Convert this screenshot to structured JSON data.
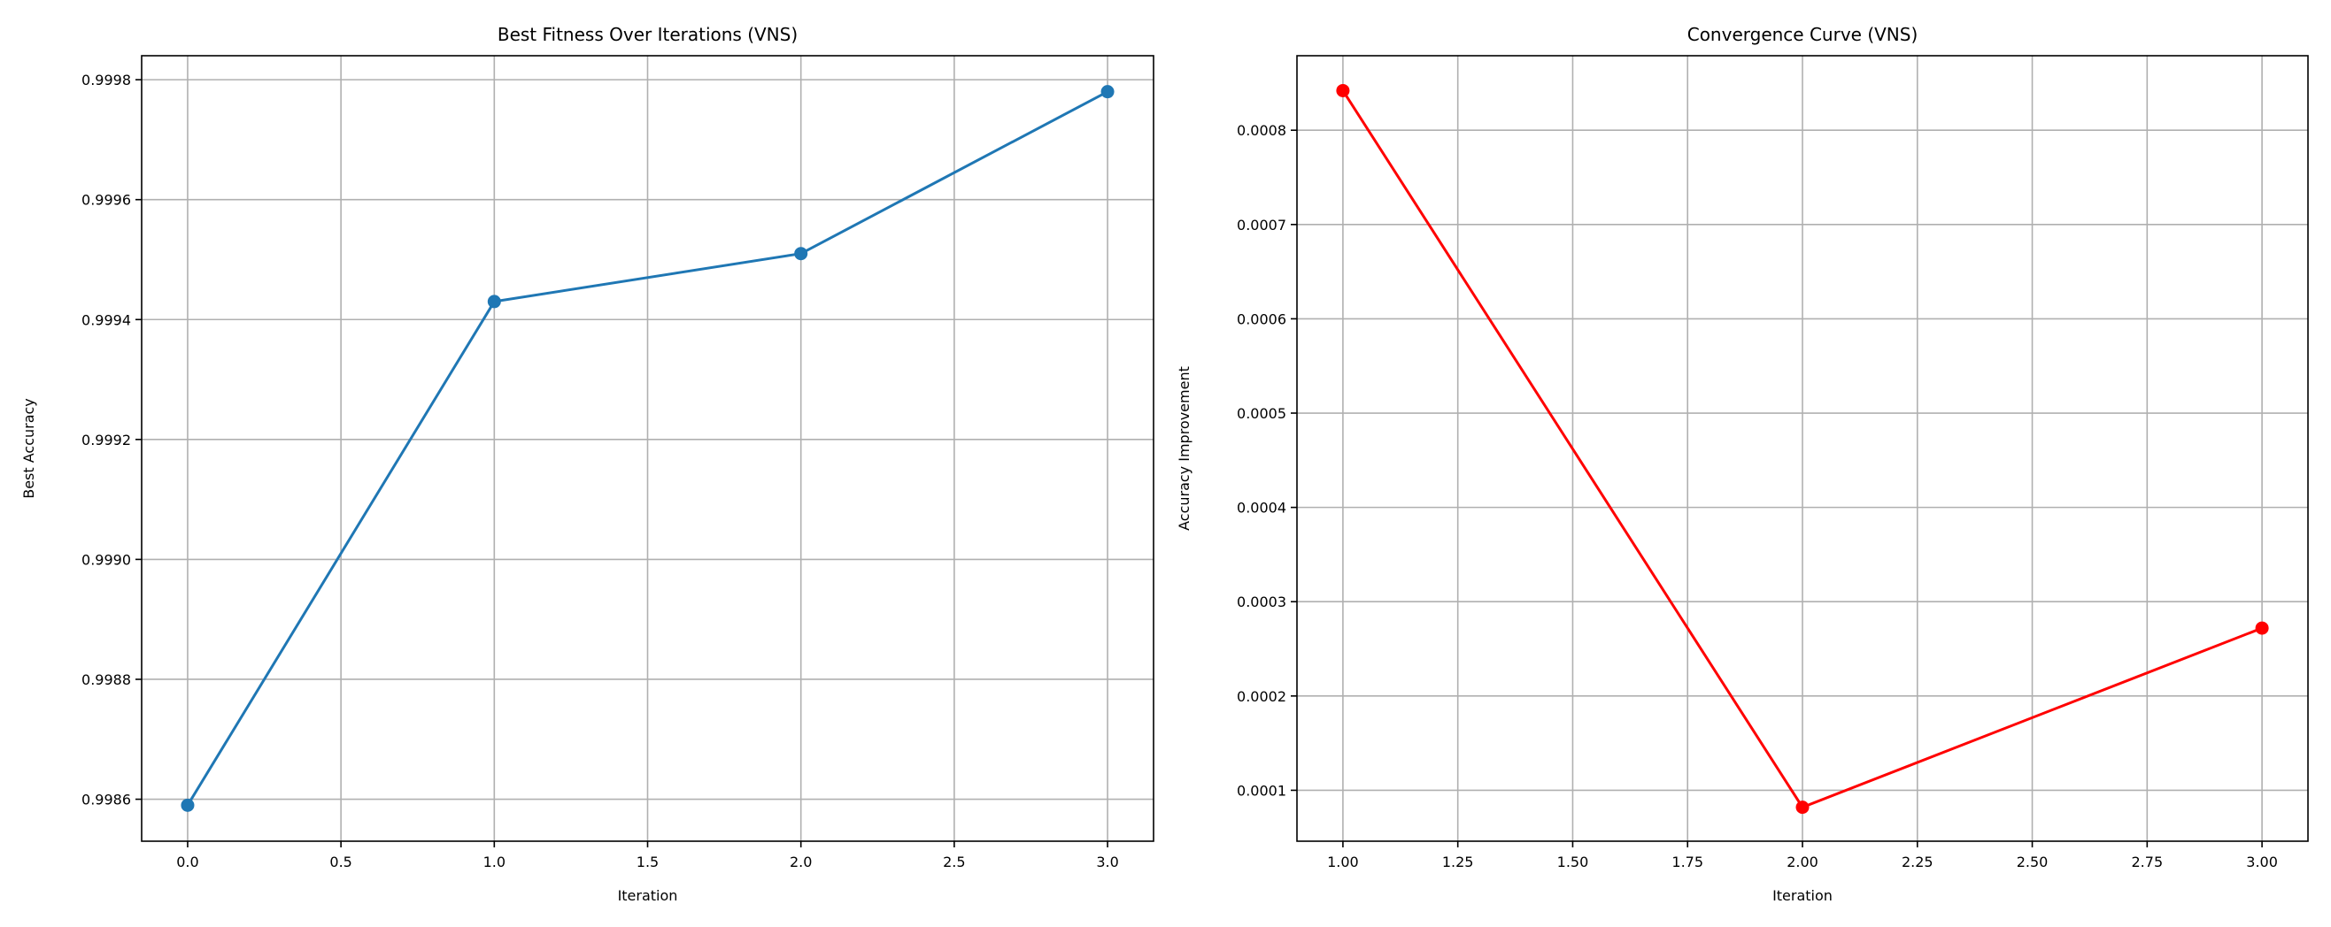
{
  "chart_data": [
    {
      "type": "line",
      "title": "Best Fitness Over Iterations (VNS)",
      "xlabel": "Iteration",
      "ylabel": "Best Accuracy",
      "xlim": [
        -0.15,
        3.15
      ],
      "ylim": [
        0.99853,
        0.99984
      ],
      "xticks": [
        0.0,
        0.5,
        1.0,
        1.5,
        2.0,
        2.5,
        3.0
      ],
      "xtick_labels": [
        "0.0",
        "0.5",
        "1.0",
        "1.5",
        "2.0",
        "2.5",
        "3.0"
      ],
      "yticks": [
        0.9986,
        0.9988,
        0.999,
        0.9992,
        0.9994,
        0.9996,
        0.9998
      ],
      "ytick_labels": [
        "0.9986",
        "0.9988",
        "0.9990",
        "0.9992",
        "0.9994",
        "0.9996",
        "0.9998"
      ],
      "grid": true,
      "series": [
        {
          "color": "#1f77b4",
          "marker": "circle",
          "x": [
            0,
            1,
            2,
            3
          ],
          "y": [
            0.99859,
            0.99943,
            0.99951,
            0.99978
          ]
        }
      ]
    },
    {
      "type": "line",
      "title": "Convergence Curve (VNS)",
      "xlabel": "Iteration",
      "ylabel": "Accuracy Improvement",
      "xlim": [
        0.9,
        3.1
      ],
      "ylim": [
        4.6e-05,
        0.000879
      ],
      "xticks": [
        1.0,
        1.25,
        1.5,
        1.75,
        2.0,
        2.25,
        2.5,
        2.75,
        3.0
      ],
      "xtick_labels": [
        "1.00",
        "1.25",
        "1.50",
        "1.75",
        "2.00",
        "2.25",
        "2.50",
        "2.75",
        "3.00"
      ],
      "yticks": [
        0.0001,
        0.0002,
        0.0003,
        0.0004,
        0.0005,
        0.0006,
        0.0007,
        0.0008
      ],
      "ytick_labels": [
        "0.0001",
        "0.0002",
        "0.0003",
        "0.0004",
        "0.0005",
        "0.0006",
        "0.0007",
        "0.0008"
      ],
      "grid": true,
      "series": [
        {
          "color": "#ff0000",
          "marker": "circle",
          "x": [
            1,
            2,
            3
          ],
          "y": [
            0.000842,
            8.2e-05,
            0.000272
          ]
        }
      ]
    }
  ]
}
